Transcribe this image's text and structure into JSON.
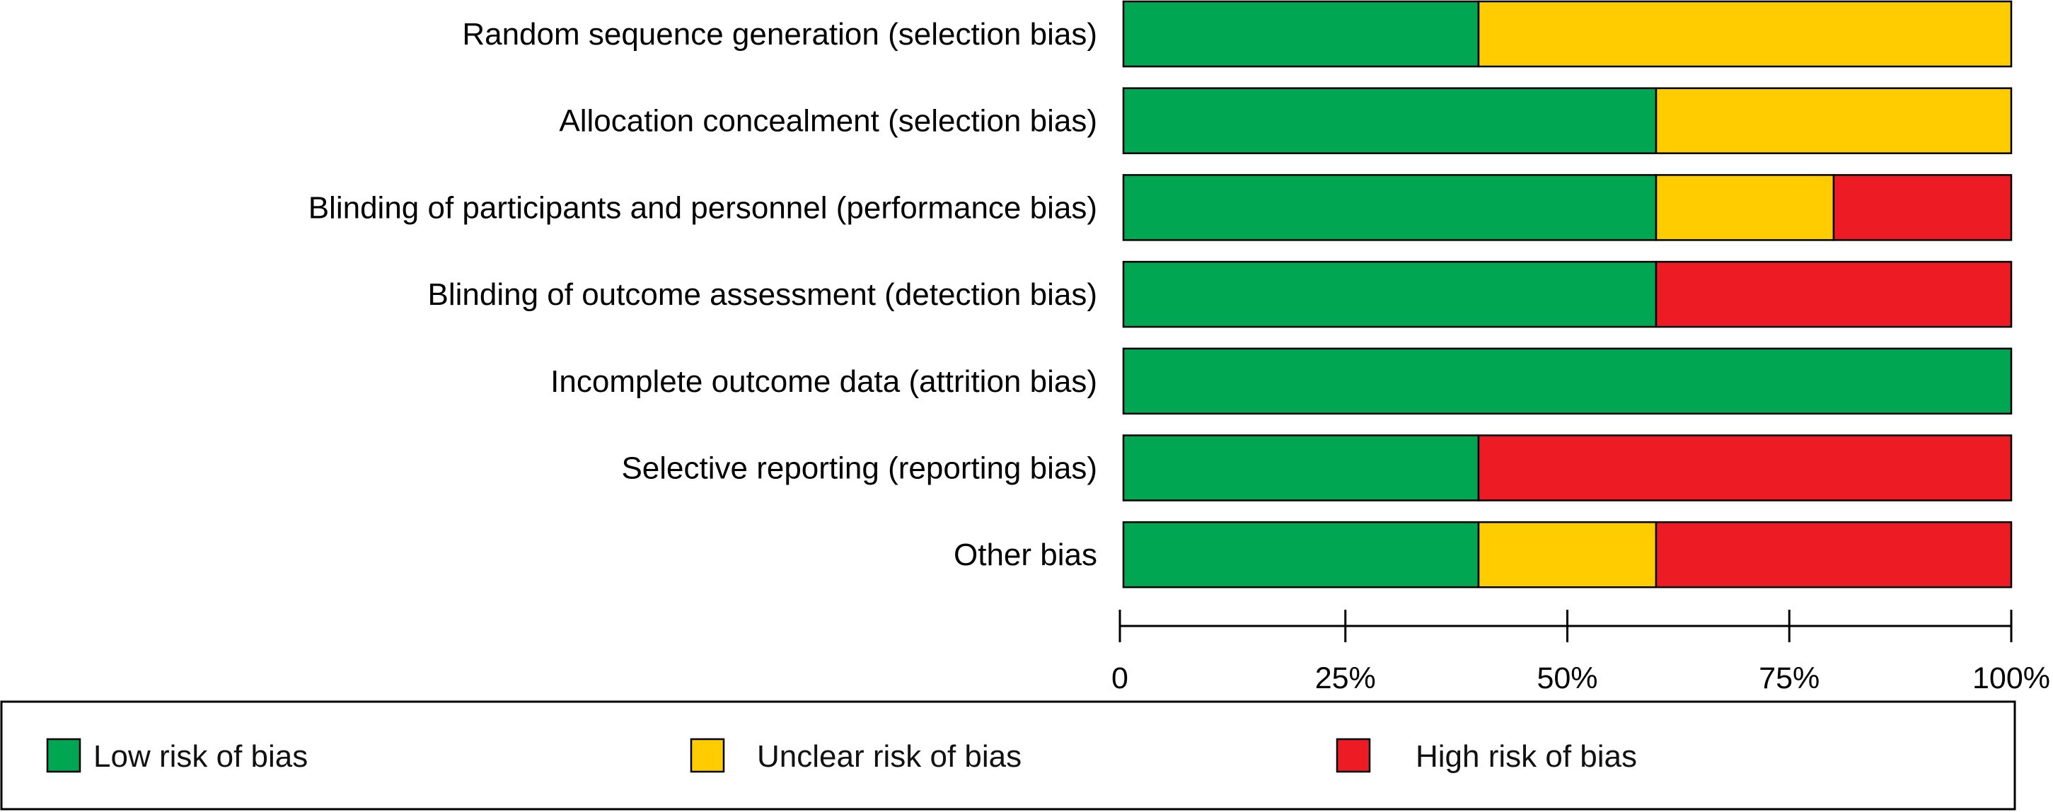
{
  "chart_data": {
    "type": "bar",
    "orientation": "horizontal",
    "stacked": true,
    "normalized": true,
    "categories": [
      "Random sequence generation (selection bias)",
      "Allocation concealment (selection bias)",
      "Blinding of participants and personnel (performance bias)",
      "Blinding of outcome assessment (detection bias)",
      "Incomplete outcome data (attrition bias)",
      "Selective reporting (reporting bias)",
      "Other bias"
    ],
    "series": [
      {
        "name": "Low risk of bias",
        "color": "#00A651",
        "values": [
          40,
          60,
          60,
          60,
          100,
          40,
          40
        ]
      },
      {
        "name": "Unclear risk of bias",
        "color": "#FFCC00",
        "values": [
          60,
          40,
          20,
          0,
          0,
          0,
          20
        ]
      },
      {
        "name": "High risk of bias",
        "color": "#ED1C24",
        "values": [
          0,
          0,
          20,
          40,
          0,
          60,
          40
        ]
      }
    ],
    "xlim": [
      0,
      100
    ],
    "xticks": [
      0,
      25,
      50,
      75,
      100
    ],
    "xtick_labels": [
      "0",
      "25%",
      "50%",
      "75%",
      "100%"
    ],
    "grid": false,
    "legend_position": "bottom",
    "title": "",
    "xlabel": "",
    "ylabel": ""
  }
}
